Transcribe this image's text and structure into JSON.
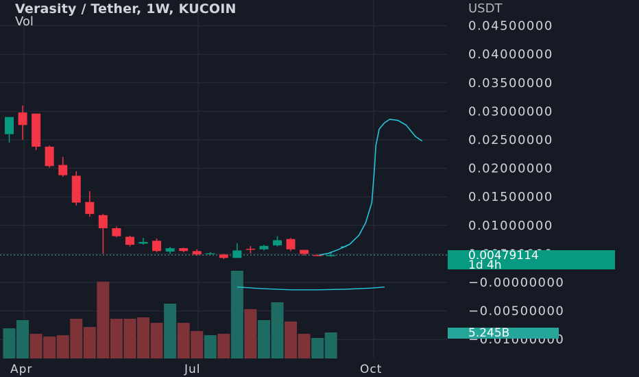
{
  "header": {
    "title": "Verasity / Tether, 1W, KUCOIN",
    "volume_label": "Vol",
    "axis_unit": "USDT"
  },
  "price_badge": {
    "value": "0.00479114",
    "countdown": "1d 4h"
  },
  "volume_badge": {
    "value": "5.245B"
  },
  "colors": {
    "background": "#161a25",
    "grid": "#2a2e39",
    "up": "#089981",
    "down": "#f23645",
    "up_volume": "#1e6b63",
    "down_volume": "#7d3338",
    "indicator_line": "#26c6da",
    "text": "#d1d4dc"
  },
  "chart_data": {
    "type": "candlestick",
    "symbol": "Verasity / Tether",
    "interval": "1W",
    "exchange": "KUCOIN",
    "price_axis": {
      "ticks": [
        "0.04500000",
        "0.04000000",
        "0.03500000",
        "0.03000000",
        "0.02500000",
        "0.02000000",
        "0.01500000",
        "0.01000000",
        "0.00500000",
        "−0.00000000",
        "−0.00500000",
        "−0.01000000"
      ],
      "tick_values": [
        0.045,
        0.04,
        0.035,
        0.03,
        0.025,
        0.02,
        0.015,
        0.01,
        0.005,
        0,
        -0.005,
        -0.01
      ]
    },
    "time_axis": {
      "ticks": [
        "Apr",
        "Jul",
        "Oct"
      ]
    },
    "last_price": 0.00479114,
    "candles": [
      {
        "o": 0.026,
        "h": 0.029,
        "l": 0.0245,
        "c": 0.029
      },
      {
        "o": 0.0298,
        "h": 0.031,
        "l": 0.025,
        "c": 0.0276
      },
      {
        "o": 0.0296,
        "h": 0.0296,
        "l": 0.0232,
        "c": 0.0238
      },
      {
        "o": 0.0238,
        "h": 0.024,
        "l": 0.0201,
        "c": 0.0204
      },
      {
        "o": 0.0206,
        "h": 0.022,
        "l": 0.0185,
        "c": 0.0188
      },
      {
        "o": 0.0187,
        "h": 0.0195,
        "l": 0.0135,
        "c": 0.014
      },
      {
        "o": 0.0141,
        "h": 0.016,
        "l": 0.0115,
        "c": 0.012
      },
      {
        "o": 0.0118,
        "h": 0.012,
        "l": 0.005,
        "c": 0.0095
      },
      {
        "o": 0.0095,
        "h": 0.0098,
        "l": 0.0079,
        "c": 0.0081
      },
      {
        "o": 0.008,
        "h": 0.0082,
        "l": 0.0063,
        "c": 0.0066
      },
      {
        "o": 0.0068,
        "h": 0.0078,
        "l": 0.0066,
        "c": 0.0071
      },
      {
        "o": 0.0073,
        "h": 0.0077,
        "l": 0.0053,
        "c": 0.0055
      },
      {
        "o": 0.0054,
        "h": 0.0062,
        "l": 0.005,
        "c": 0.006
      },
      {
        "o": 0.006,
        "h": 0.0061,
        "l": 0.0053,
        "c": 0.0055
      },
      {
        "o": 0.0055,
        "h": 0.0058,
        "l": 0.0047,
        "c": 0.0049
      },
      {
        "o": 0.005,
        "h": 0.0053,
        "l": 0.0049,
        "c": 0.0051
      },
      {
        "o": 0.0049,
        "h": 0.005,
        "l": 0.0041,
        "c": 0.0043
      },
      {
        "o": 0.0043,
        "h": 0.0069,
        "l": 0.0043,
        "c": 0.0056
      },
      {
        "o": 0.0059,
        "h": 0.0064,
        "l": 0.0051,
        "c": 0.0058
      },
      {
        "o": 0.0058,
        "h": 0.0066,
        "l": 0.0056,
        "c": 0.0064
      },
      {
        "o": 0.0065,
        "h": 0.0081,
        "l": 0.0063,
        "c": 0.0074
      },
      {
        "o": 0.0076,
        "h": 0.0078,
        "l": 0.0055,
        "c": 0.0058
      },
      {
        "o": 0.0057,
        "h": 0.0057,
        "l": 0.0047,
        "c": 0.005
      },
      {
        "o": 0.0048,
        "h": 0.0049,
        "l": 0.0046,
        "c": 0.0047
      },
      {
        "o": 0.0046,
        "h": 0.0054,
        "l": 0.0045,
        "c": 0.0048
      }
    ],
    "volume": {
      "badge": "5.245B",
      "bars": [
        {
          "v": 0.22,
          "up": true
        },
        {
          "v": 0.28,
          "up": true
        },
        {
          "v": 0.18,
          "up": false
        },
        {
          "v": 0.16,
          "up": false
        },
        {
          "v": 0.17,
          "up": false
        },
        {
          "v": 0.29,
          "up": false
        },
        {
          "v": 0.23,
          "up": false
        },
        {
          "v": 0.56,
          "up": false
        },
        {
          "v": 0.29,
          "up": false
        },
        {
          "v": 0.29,
          "up": false
        },
        {
          "v": 0.3,
          "up": false
        },
        {
          "v": 0.26,
          "up": false
        },
        {
          "v": 0.4,
          "up": true
        },
        {
          "v": 0.26,
          "up": false
        },
        {
          "v": 0.2,
          "up": false
        },
        {
          "v": 0.17,
          "up": true
        },
        {
          "v": 0.18,
          "up": false
        },
        {
          "v": 0.64,
          "up": true
        },
        {
          "v": 0.36,
          "up": false
        },
        {
          "v": 0.28,
          "up": true
        },
        {
          "v": 0.41,
          "up": true
        },
        {
          "v": 0.27,
          "up": false
        },
        {
          "v": 0.18,
          "up": false
        },
        {
          "v": 0.15,
          "up": true
        },
        {
          "v": 0.19,
          "up": true
        }
      ]
    },
    "indicator_upper": [
      [
        -0.9,
        0.00479
      ],
      [
        -0.2,
        0.0051
      ],
      [
        0.6,
        0.0058
      ],
      [
        1.4,
        0.0067
      ],
      [
        2.1,
        0.0083
      ],
      [
        2.6,
        0.0105
      ],
      [
        3.05,
        0.014
      ],
      [
        3.25,
        0.02
      ],
      [
        3.35,
        0.024
      ],
      [
        3.6,
        0.0269
      ],
      [
        4.0,
        0.028
      ],
      [
        4.4,
        0.0286
      ],
      [
        5.0,
        0.0284
      ],
      [
        5.6,
        0.0276
      ],
      [
        6.3,
        0.0256
      ],
      [
        6.8,
        0.0248
      ]
    ],
    "indicator_lower": [
      [
        -7.0,
        -0.0008
      ],
      [
        -5.0,
        -0.0011
      ],
      [
        -3.0,
        -0.0013
      ],
      [
        -1.0,
        -0.0013
      ],
      [
        1.0,
        -0.0012
      ],
      [
        3.0,
        -0.001
      ],
      [
        4.0,
        -0.0008
      ]
    ],
    "indicator_small": [
      [
        0.75,
        0.0062
      ],
      [
        1.15,
        0.0063
      ]
    ]
  }
}
